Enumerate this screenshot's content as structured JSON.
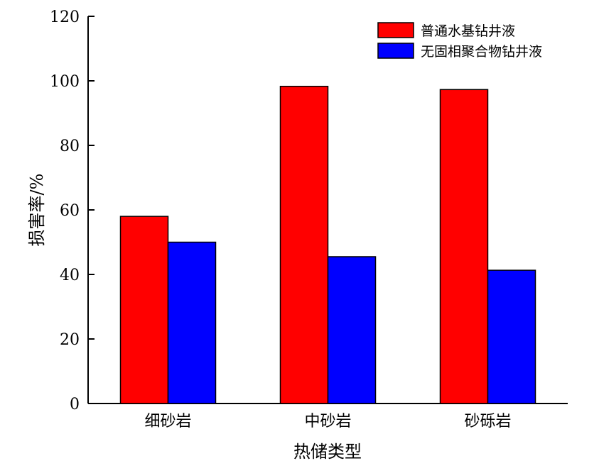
{
  "chart_data": {
    "type": "bar",
    "title": "",
    "xlabel": "热储类型",
    "ylabel": "损害率/%",
    "categories": [
      "细砂岩",
      "中砂岩",
      "砂砾岩"
    ],
    "series": [
      {
        "name": "普通水基钻井液",
        "values": [
          58,
          98.3,
          97.3
        ],
        "color": "#ff0000"
      },
      {
        "name": "无固相聚合物钻井液",
        "values": [
          50,
          45.5,
          41.3
        ],
        "color": "#0000ff"
      }
    ],
    "ylim": [
      0,
      120
    ],
    "yticks": [
      0,
      20,
      40,
      60,
      80,
      100,
      120
    ],
    "grid": false,
    "legend": "top-right"
  }
}
